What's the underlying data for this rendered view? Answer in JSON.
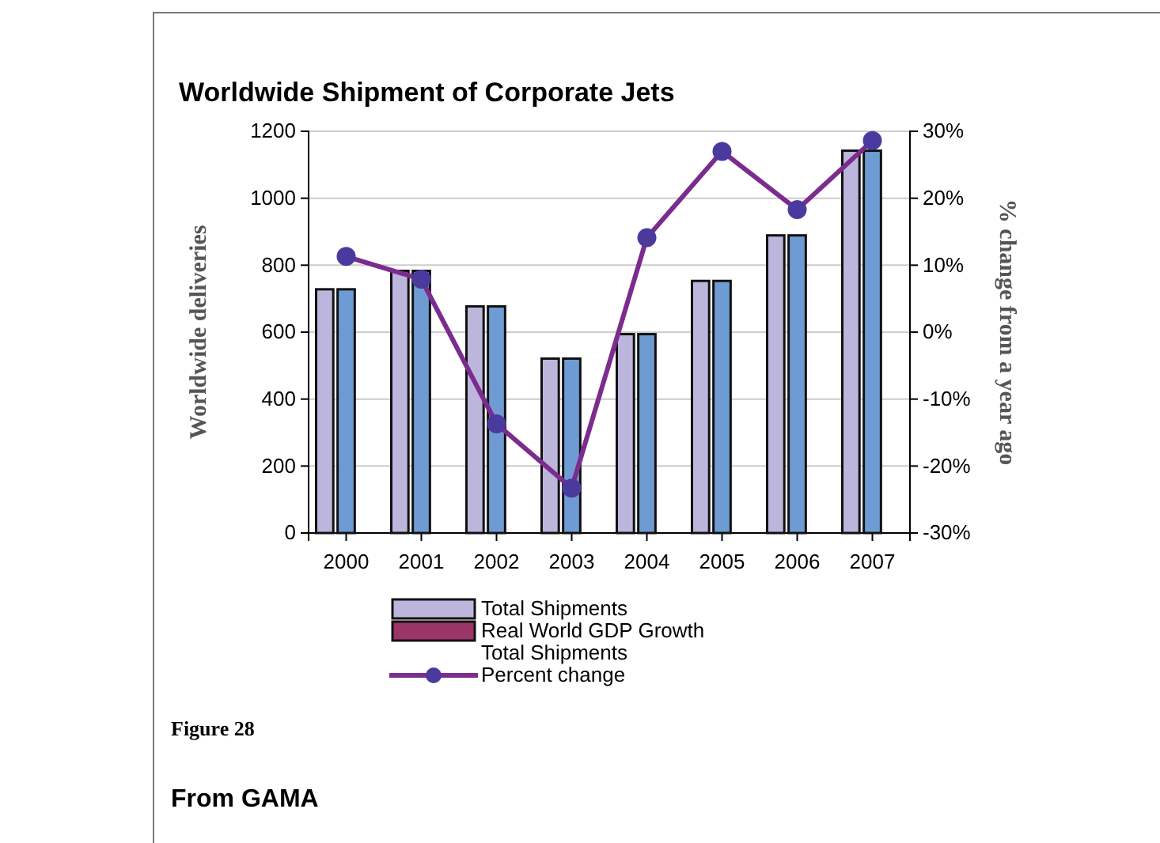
{
  "chart_data": {
    "type": "bar",
    "title": "Worldwide Shipment of Corporate Jets",
    "ylabel": "Worldwide deliveries",
    "y2label": "% change from a year ago",
    "categories": [
      "2000",
      "2001",
      "2002",
      "2003",
      "2004",
      "2005",
      "2006",
      "2007"
    ],
    "series": [
      {
        "name": "Total Shipments",
        "color": "#bdb6dc",
        "values": [
          728,
          783,
          677,
          521,
          594,
          753,
          889,
          1142
        ]
      },
      {
        "color": "#6f9bd4",
        "values": [
          728,
          783,
          677,
          521,
          594,
          753,
          889,
          1142
        ]
      },
      {
        "name": "Real World GDP Growth",
        "color": "#9b3566",
        "values": [
          null,
          null,
          null,
          null,
          null,
          null,
          null,
          null
        ]
      },
      {
        "name": "Total Shipments\nPercent change",
        "type": "line",
        "axis": "y2",
        "color": "#7b2c8e",
        "marker": "circle",
        "values": [
          11.3,
          7.9,
          -13.7,
          -23.3,
          14.1,
          27.0,
          18.3,
          28.6
        ]
      }
    ],
    "ylim": [
      0,
      1200
    ],
    "yticks": [
      0,
      200,
      400,
      600,
      800,
      1000,
      1200
    ],
    "y2lim": [
      -30,
      30
    ],
    "y2ticks": [
      {
        "value": -30,
        "label": "-30%"
      },
      {
        "value": -20,
        "label": "-20%"
      },
      {
        "value": -10,
        "label": "-10%"
      },
      {
        "value": 0,
        "label": "0%"
      },
      {
        "value": 10,
        "label": "10%"
      },
      {
        "value": 20,
        "label": "20%"
      },
      {
        "value": 30,
        "label": "30%"
      }
    ],
    "grid": "y",
    "legend": "bottom",
    "annotations": [
      "Figure 28",
      "From GAMA"
    ]
  }
}
